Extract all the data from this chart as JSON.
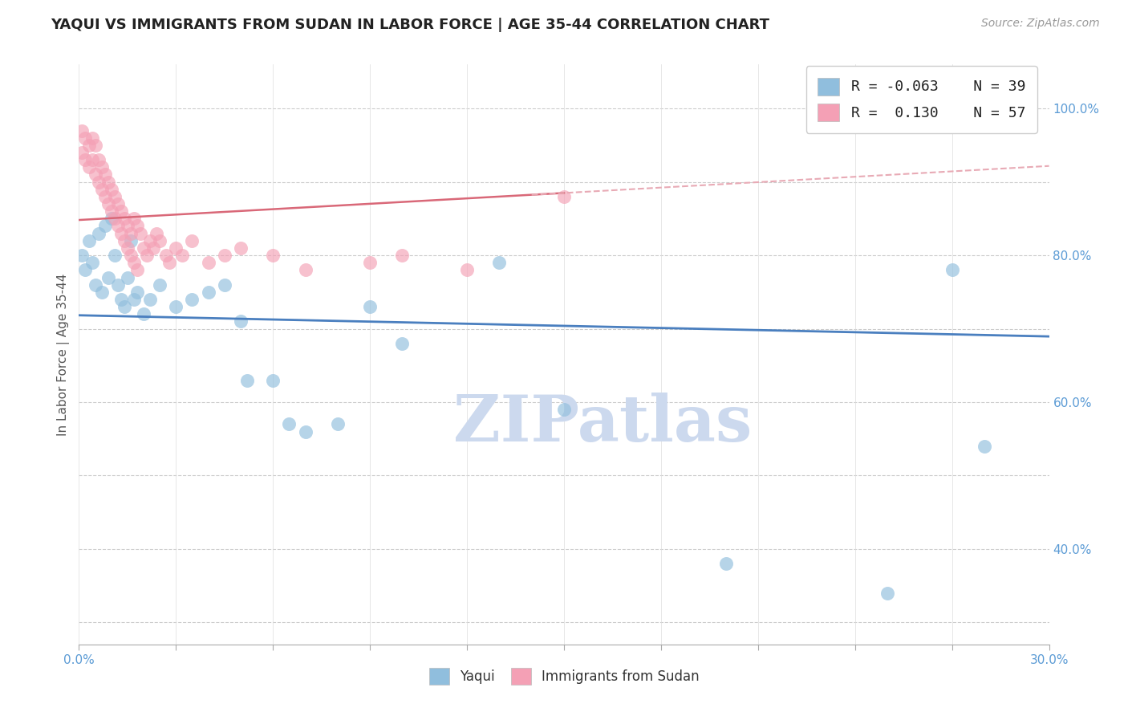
{
  "title": "YAQUI VS IMMIGRANTS FROM SUDAN IN LABOR FORCE | AGE 35-44 CORRELATION CHART",
  "source": "Source: ZipAtlas.com",
  "ylabel": "In Labor Force | Age 35-44",
  "legend_label_blue": "Yaqui",
  "legend_label_pink": "Immigrants from Sudan",
  "R_blue": -0.063,
  "N_blue": 39,
  "R_pink": 0.13,
  "N_pink": 57,
  "xlim": [
    0.0,
    0.3
  ],
  "ylim": [
    0.27,
    1.06
  ],
  "x_ticks": [
    0.0,
    0.03,
    0.06,
    0.09,
    0.12,
    0.15,
    0.18,
    0.21,
    0.24,
    0.27,
    0.3
  ],
  "x_tick_labels_show": [
    "0.0%",
    "",
    "",
    "",
    "",
    "",
    "",
    "",
    "",
    "",
    "30.0%"
  ],
  "y_ticks": [
    0.3,
    0.4,
    0.5,
    0.6,
    0.7,
    0.8,
    0.9,
    1.0
  ],
  "y_tick_labels": [
    "",
    "40.0%",
    "",
    "60.0%",
    "",
    "80.0%",
    "",
    "100.0%"
  ],
  "blue_color": "#90bedd",
  "pink_color": "#f4a0b5",
  "blue_line_color": "#4a7fbf",
  "pink_line_color": "#d96878",
  "pink_dashed_color": "#e8aab5",
  "background_color": "#ffffff",
  "watermark_color": "#ccd9ee",
  "blue_x": [
    0.001,
    0.002,
    0.003,
    0.004,
    0.005,
    0.006,
    0.007,
    0.008,
    0.009,
    0.01,
    0.011,
    0.012,
    0.013,
    0.014,
    0.015,
    0.016,
    0.017,
    0.018,
    0.02,
    0.022,
    0.025,
    0.03,
    0.035,
    0.04,
    0.045,
    0.05,
    0.052,
    0.06,
    0.065,
    0.07,
    0.08,
    0.09,
    0.1,
    0.13,
    0.15,
    0.2,
    0.25,
    0.27,
    0.28
  ],
  "blue_y": [
    0.8,
    0.78,
    0.82,
    0.79,
    0.76,
    0.83,
    0.75,
    0.84,
    0.77,
    0.85,
    0.8,
    0.76,
    0.74,
    0.73,
    0.77,
    0.82,
    0.74,
    0.75,
    0.72,
    0.74,
    0.76,
    0.73,
    0.74,
    0.75,
    0.76,
    0.71,
    0.63,
    0.63,
    0.57,
    0.56,
    0.57,
    0.73,
    0.68,
    0.79,
    0.59,
    0.38,
    0.34,
    0.78,
    0.54
  ],
  "pink_x": [
    0.001,
    0.001,
    0.002,
    0.002,
    0.003,
    0.003,
    0.004,
    0.004,
    0.005,
    0.005,
    0.006,
    0.006,
    0.007,
    0.007,
    0.008,
    0.008,
    0.009,
    0.009,
    0.01,
    0.01,
    0.011,
    0.011,
    0.012,
    0.012,
    0.013,
    0.013,
    0.014,
    0.014,
    0.015,
    0.015,
    0.016,
    0.016,
    0.017,
    0.017,
    0.018,
    0.018,
    0.019,
    0.02,
    0.021,
    0.022,
    0.023,
    0.024,
    0.025,
    0.027,
    0.028,
    0.03,
    0.032,
    0.035,
    0.04,
    0.045,
    0.05,
    0.06,
    0.07,
    0.09,
    0.1,
    0.12,
    0.15
  ],
  "pink_y": [
    0.97,
    0.94,
    0.96,
    0.93,
    0.95,
    0.92,
    0.96,
    0.93,
    0.95,
    0.91,
    0.93,
    0.9,
    0.92,
    0.89,
    0.91,
    0.88,
    0.9,
    0.87,
    0.89,
    0.86,
    0.88,
    0.85,
    0.87,
    0.84,
    0.86,
    0.83,
    0.85,
    0.82,
    0.84,
    0.81,
    0.83,
    0.8,
    0.85,
    0.79,
    0.84,
    0.78,
    0.83,
    0.81,
    0.8,
    0.82,
    0.81,
    0.83,
    0.82,
    0.8,
    0.79,
    0.81,
    0.8,
    0.82,
    0.79,
    0.8,
    0.81,
    0.8,
    0.78,
    0.79,
    0.8,
    0.78,
    0.88
  ]
}
